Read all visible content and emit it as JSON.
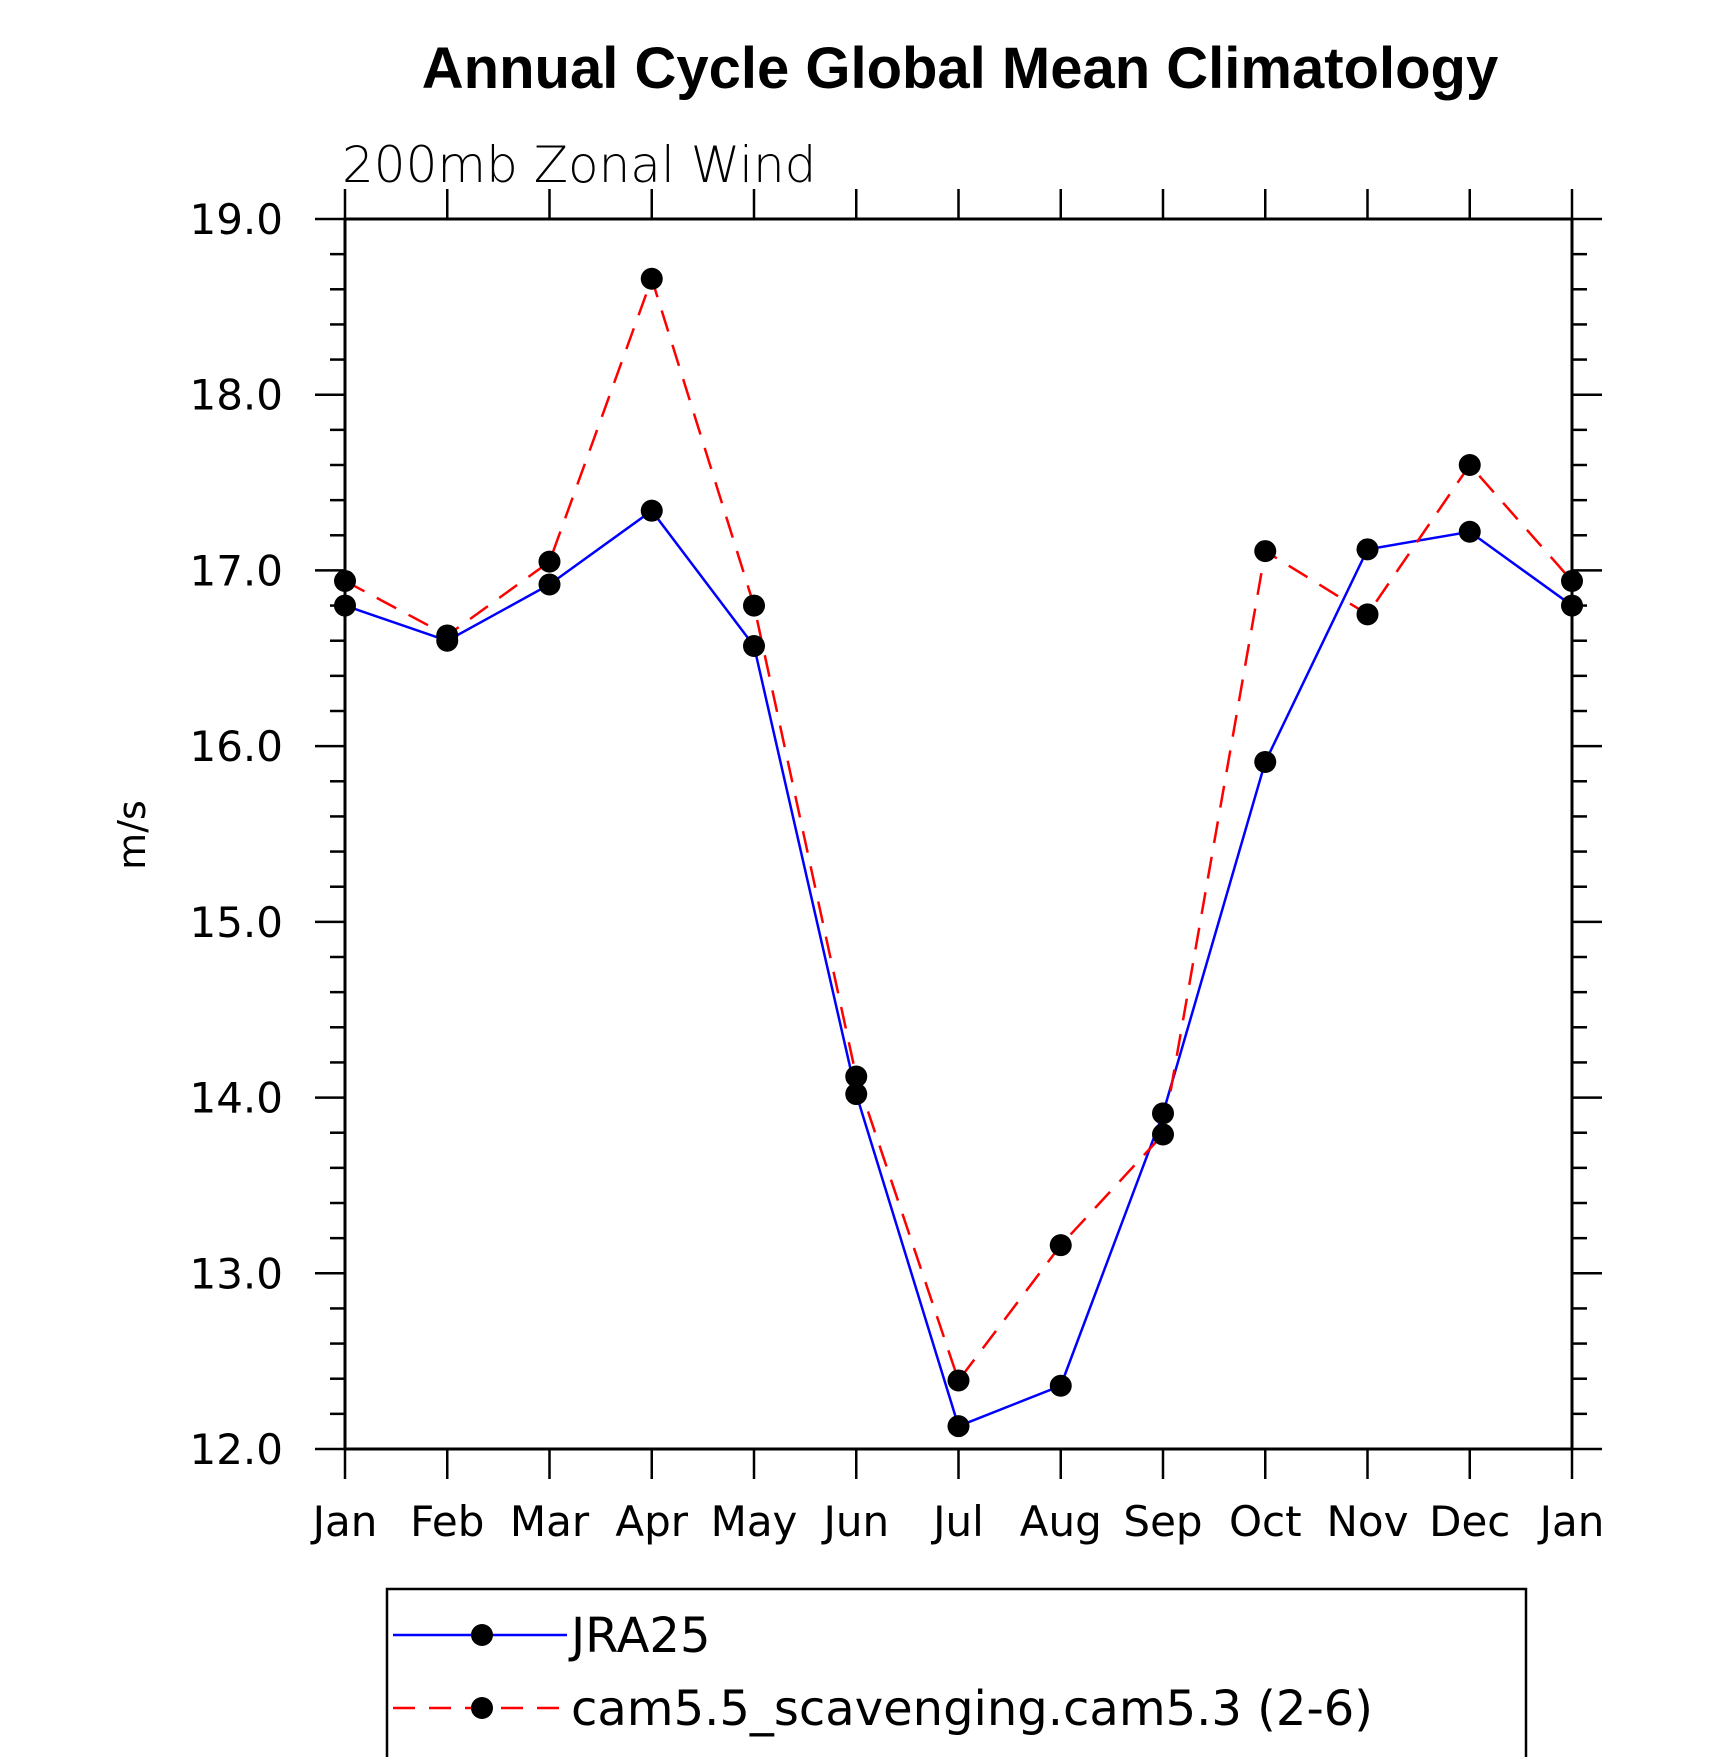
{
  "chart_data": {
    "type": "line",
    "title": "Annual Cycle Global Mean Climatology",
    "subtitle": "200mb Zonal Wind",
    "xlabel": "",
    "ylabel": "m/s",
    "categories": [
      "Jan",
      "Feb",
      "Mar",
      "Apr",
      "May",
      "Jun",
      "Jul",
      "Aug",
      "Sep",
      "Oct",
      "Nov",
      "Dec",
      "Jan"
    ],
    "ylim": [
      12.0,
      19.0
    ],
    "yticks": [
      "12.0",
      "13.0",
      "14.0",
      "15.0",
      "16.0",
      "17.0",
      "18.0",
      "19.0"
    ],
    "legend_position": "bottom",
    "series": [
      {
        "name": "JRA25",
        "color": "#0000ff",
        "line_style": "solid",
        "marker": "filled-circle",
        "values": [
          16.8,
          16.6,
          16.92,
          17.34,
          16.57,
          14.02,
          12.13,
          12.36,
          13.91,
          15.91,
          17.12,
          17.22,
          16.8
        ]
      },
      {
        "name": "cam5.5_scavenging.cam5.3 (2-6)",
        "color": "#ff0000",
        "line_style": "dashed",
        "marker": "filled-circle",
        "values": [
          16.94,
          16.63,
          17.05,
          18.66,
          16.8,
          14.12,
          12.39,
          13.16,
          13.79,
          17.11,
          16.75,
          17.6,
          16.94
        ]
      }
    ]
  }
}
